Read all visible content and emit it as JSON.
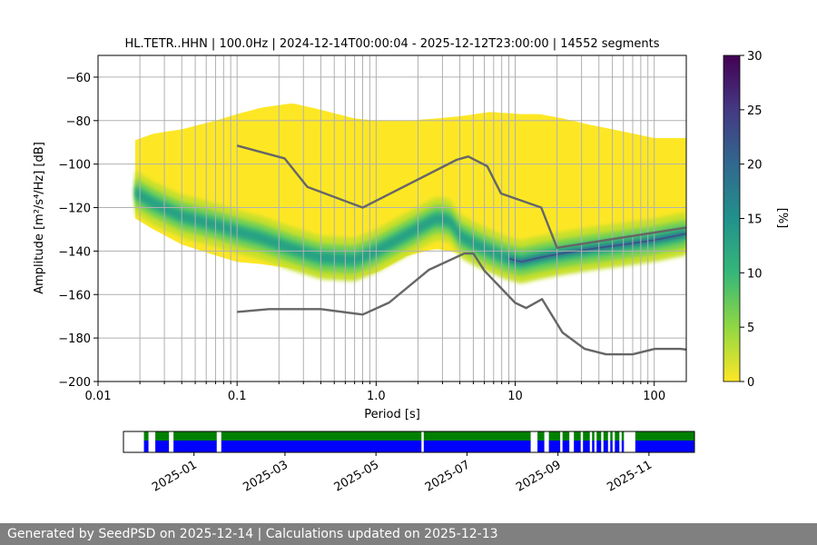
{
  "chart_data": {
    "type": "heatmap",
    "title": "HL.TETR..HHN | 100.0Hz | 2024-12-14T00:00:04 - 2025-12-12T23:00:00 | 14552 segments",
    "xlabel": "Period [s]",
    "ylabel": "Amplitude [m²/s⁴/Hz] [dB]",
    "xscale": "log",
    "xlim": [
      0.01,
      170
    ],
    "ylim": [
      -200,
      -50
    ],
    "xticks": [
      {
        "value": 0.01,
        "label": "0.01"
      },
      {
        "value": 0.1,
        "label": "0.1"
      },
      {
        "value": 1,
        "label": "1.0"
      },
      {
        "value": 10,
        "label": "10"
      },
      {
        "value": 100,
        "label": "100"
      }
    ],
    "yticks": [
      {
        "value": -60,
        "label": "−60"
      },
      {
        "value": -80,
        "label": "−80"
      },
      {
        "value": -100,
        "label": "−100"
      },
      {
        "value": -120,
        "label": "−120"
      },
      {
        "value": -140,
        "label": "−140"
      },
      {
        "value": -160,
        "label": "−160"
      },
      {
        "value": -180,
        "label": "−180"
      },
      {
        "value": -200,
        "label": "−200"
      }
    ],
    "grid": true,
    "colorbar": {
      "label": "[%]",
      "min": 0,
      "max": 30,
      "ticks": [
        0,
        5,
        10,
        15,
        20,
        25,
        30
      ],
      "colormap": "viridis_r"
    },
    "noise_models": [
      {
        "name": "NHNM",
        "x": [
          0.1,
          0.22,
          0.32,
          0.8,
          3.8,
          4.6,
          6.3,
          7.9,
          15.4,
          20,
          354.8
        ],
        "y": [
          -91.5,
          -97.4,
          -110.5,
          -120,
          -98,
          -96.5,
          -101,
          -113.5,
          -120,
          -138.5,
          -126
        ]
      },
      {
        "name": "NLNM",
        "x": [
          0.1,
          0.17,
          0.4,
          0.8,
          1.24,
          2.4,
          4.3,
          5,
          6,
          10,
          12,
          15.6,
          21.9,
          31.6,
          45,
          70,
          101,
          154,
          328
        ],
        "y": [
          -168,
          -166.7,
          -166.7,
          -169.2,
          -163.7,
          -148.6,
          -141.1,
          -141.1,
          -149,
          -163.8,
          -166.2,
          -162.1,
          -177.5,
          -185,
          -187.5,
          -187.5,
          -185,
          -185,
          -187.5
        ]
      }
    ],
    "ppsd_mode": {
      "x": [
        0.0185,
        0.025,
        0.04,
        0.07,
        0.1,
        0.15,
        0.25,
        0.4,
        0.7,
        1.0,
        1.7,
        2.7,
        3.4,
        4.0,
        5.2,
        6.6,
        8.5,
        11,
        15,
        22,
        35,
        60,
        100,
        170
      ],
      "y": [
        -113,
        -118,
        -124,
        -128,
        -131,
        -134,
        -139,
        -143,
        -144,
        -140,
        -132,
        -125,
        -126,
        -133,
        -137,
        -140,
        -143,
        -145,
        -143,
        -141,
        -139,
        -137,
        -135,
        -132
      ]
    },
    "ppsd_span": {
      "x": [
        0.0185,
        0.025,
        0.04,
        0.07,
        0.1,
        0.15,
        0.25,
        0.4,
        0.7,
        1.0,
        1.7,
        2.7,
        4.0,
        6.6,
        11,
        15,
        22,
        35,
        60,
        100,
        170
      ],
      "upper": [
        -89,
        -86,
        -84,
        -80,
        -77,
        -74,
        -72,
        -75,
        -79,
        -80,
        -80,
        -79,
        -78,
        -76,
        -77,
        -77,
        -79,
        -82,
        -85,
        -88,
        -88
      ],
      "lower": [
        -125,
        -130,
        -137,
        -142,
        -145,
        -146,
        -148,
        -150,
        -152,
        -150,
        -142,
        -139,
        -141,
        -143,
        -148,
        -148,
        -146,
        -143,
        -141,
        -140,
        -141
      ]
    },
    "data_availability": {
      "date_ticks": [
        "2025-01",
        "2025-03",
        "2025-05",
        "2025-07",
        "2025-09",
        "2025-11"
      ],
      "tick_months": [
        1,
        3,
        5,
        7,
        9,
        11
      ],
      "start_month": 11.45,
      "end_month": 24.0,
      "segments": [
        [
          11.9,
          12.0
        ],
        [
          12.15,
          12.45
        ],
        [
          12.55,
          13.5
        ],
        [
          13.6,
          18.0
        ],
        [
          18.05,
          20.4
        ],
        [
          20.55,
          20.7
        ],
        [
          20.8,
          21.05
        ],
        [
          21.1,
          21.25
        ],
        [
          21.35,
          21.5
        ],
        [
          21.55,
          21.7
        ],
        [
          21.75,
          21.8
        ],
        [
          21.85,
          21.95
        ],
        [
          22.0,
          22.1
        ],
        [
          22.15,
          22.2
        ],
        [
          22.25,
          22.35
        ],
        [
          22.4,
          22.45
        ],
        [
          22.7,
          24.35
        ],
        [
          24.4,
          24.6
        ]
      ],
      "colors": {
        "top": "#008000",
        "bottom": "#0000ff"
      }
    }
  },
  "footer": {
    "text": "Generated by SeedPSD on 2025-12-14 | Calculations updated on 2025-12-13"
  }
}
